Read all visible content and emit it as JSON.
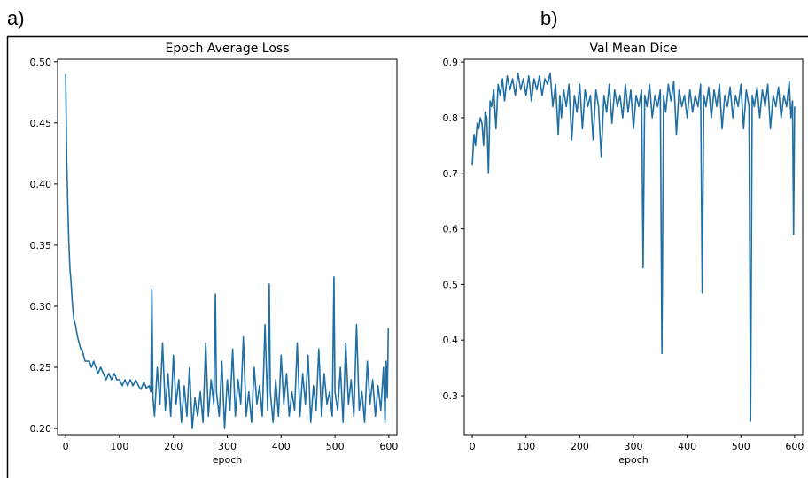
{
  "panels": [
    {
      "label": "a)"
    },
    {
      "label": "b)"
    }
  ],
  "chart_data": [
    {
      "type": "line",
      "title": "Epoch Average Loss",
      "xlabel": "epoch",
      "ylabel": "",
      "xlim": [
        -15,
        615
      ],
      "ylim": [
        0.195,
        0.502
      ],
      "xticks": [
        0,
        100,
        200,
        300,
        400,
        500,
        600
      ],
      "yticks": [
        0.2,
        0.25,
        0.3,
        0.35,
        0.4,
        0.45,
        0.5
      ],
      "ytick_labels": [
        "0.20",
        "0.25",
        "0.30",
        "0.35",
        "0.40",
        "0.45",
        "0.50"
      ],
      "color": "#1f6fa4",
      "series": [
        {
          "x": [
            0,
            2,
            4,
            6,
            8,
            10,
            12,
            15,
            18,
            20,
            22,
            25,
            28,
            30,
            33,
            36,
            40,
            44,
            48,
            52,
            56,
            60,
            65,
            70,
            75,
            80,
            85,
            90,
            95,
            100,
            105,
            110,
            115,
            120,
            125,
            130,
            135,
            140,
            145,
            150,
            155,
            158,
            160,
            162,
            165,
            170,
            175,
            180,
            185,
            190,
            195,
            200,
            205,
            210,
            215,
            220,
            225,
            230,
            235,
            240,
            245,
            250,
            255,
            260,
            265,
            270,
            275,
            278,
            280,
            285,
            290,
            295,
            300,
            305,
            310,
            315,
            320,
            325,
            330,
            335,
            340,
            345,
            350,
            355,
            360,
            365,
            370,
            375,
            378,
            380,
            385,
            390,
            395,
            400,
            405,
            410,
            415,
            420,
            425,
            430,
            435,
            440,
            445,
            450,
            455,
            460,
            465,
            470,
            475,
            480,
            485,
            490,
            495,
            498,
            500,
            505,
            510,
            515,
            520,
            525,
            530,
            535,
            540,
            545,
            550,
            555,
            560,
            565,
            570,
            575,
            580,
            585,
            590,
            593,
            595,
            597,
            599
          ],
          "y": [
            0.49,
            0.42,
            0.38,
            0.35,
            0.33,
            0.32,
            0.305,
            0.29,
            0.285,
            0.28,
            0.275,
            0.27,
            0.265,
            0.265,
            0.26,
            0.255,
            0.255,
            0.255,
            0.25,
            0.255,
            0.25,
            0.245,
            0.25,
            0.245,
            0.24,
            0.245,
            0.24,
            0.245,
            0.24,
            0.24,
            0.235,
            0.24,
            0.235,
            0.24,
            0.235,
            0.24,
            0.235,
            0.232,
            0.238,
            0.233,
            0.235,
            0.23,
            0.314,
            0.225,
            0.21,
            0.25,
            0.22,
            0.27,
            0.215,
            0.245,
            0.21,
            0.26,
            0.22,
            0.24,
            0.205,
            0.235,
            0.21,
            0.25,
            0.2,
            0.225,
            0.21,
            0.23,
            0.205,
            0.27,
            0.21,
            0.24,
            0.22,
            0.31,
            0.23,
            0.21,
            0.255,
            0.2,
            0.24,
            0.215,
            0.265,
            0.21,
            0.24,
            0.22,
            0.275,
            0.21,
            0.23,
            0.205,
            0.25,
            0.22,
            0.235,
            0.21,
            0.285,
            0.215,
            0.318,
            0.23,
            0.205,
            0.24,
            0.21,
            0.26,
            0.22,
            0.245,
            0.21,
            0.23,
            0.215,
            0.27,
            0.21,
            0.245,
            0.22,
            0.26,
            0.205,
            0.235,
            0.215,
            0.265,
            0.21,
            0.245,
            0.22,
            0.23,
            0.21,
            0.324,
            0.23,
            0.215,
            0.25,
            0.205,
            0.27,
            0.22,
            0.24,
            0.21,
            0.285,
            0.215,
            0.23,
            0.205,
            0.255,
            0.22,
            0.24,
            0.21,
            0.235,
            0.215,
            0.25,
            0.205,
            0.255,
            0.225,
            0.282
          ]
        }
      ]
    },
    {
      "type": "line",
      "title": "Val Mean Dice",
      "xlabel": "epoch",
      "ylabel": "",
      "xlim": [
        -15,
        615
      ],
      "ylim": [
        0.23,
        0.905
      ],
      "xticks": [
        0,
        100,
        200,
        300,
        400,
        500,
        600
      ],
      "yticks": [
        0.3,
        0.4,
        0.5,
        0.6,
        0.7,
        0.8,
        0.9
      ],
      "ytick_labels": [
        "0.3",
        "0.4",
        "0.5",
        "0.6",
        "0.7",
        "0.8",
        "0.9"
      ],
      "color": "#1f6fa4",
      "series": [
        {
          "x": [
            0,
            3,
            6,
            9,
            12,
            15,
            18,
            21,
            24,
            27,
            30,
            33,
            36,
            40,
            44,
            48,
            52,
            56,
            60,
            65,
            70,
            75,
            80,
            85,
            90,
            95,
            100,
            105,
            110,
            115,
            120,
            125,
            130,
            135,
            140,
            145,
            150,
            155,
            160,
            163,
            166,
            170,
            175,
            180,
            185,
            190,
            195,
            200,
            205,
            210,
            215,
            220,
            225,
            230,
            235,
            240,
            245,
            250,
            255,
            260,
            265,
            270,
            275,
            280,
            285,
            290,
            295,
            300,
            305,
            310,
            315,
            318,
            321,
            325,
            330,
            335,
            340,
            345,
            350,
            353,
            356,
            360,
            365,
            370,
            375,
            380,
            385,
            390,
            395,
            400,
            405,
            410,
            415,
            420,
            425,
            428,
            431,
            435,
            440,
            445,
            450,
            455,
            460,
            465,
            470,
            475,
            480,
            485,
            490,
            495,
            500,
            505,
            510,
            515,
            518,
            521,
            525,
            530,
            535,
            540,
            545,
            550,
            555,
            560,
            565,
            570,
            575,
            580,
            585,
            590,
            593,
            596,
            598,
            600
          ],
          "y": [
            0.715,
            0.77,
            0.75,
            0.79,
            0.78,
            0.8,
            0.79,
            0.75,
            0.81,
            0.8,
            0.7,
            0.83,
            0.82,
            0.85,
            0.78,
            0.86,
            0.84,
            0.87,
            0.83,
            0.875,
            0.85,
            0.87,
            0.84,
            0.88,
            0.85,
            0.87,
            0.84,
            0.875,
            0.83,
            0.87,
            0.85,
            0.875,
            0.84,
            0.87,
            0.86,
            0.88,
            0.82,
            0.86,
            0.77,
            0.84,
            0.8,
            0.85,
            0.82,
            0.86,
            0.76,
            0.84,
            0.81,
            0.86,
            0.78,
            0.85,
            0.82,
            0.84,
            0.76,
            0.85,
            0.82,
            0.73,
            0.84,
            0.81,
            0.86,
            0.79,
            0.85,
            0.82,
            0.84,
            0.8,
            0.86,
            0.81,
            0.85,
            0.78,
            0.84,
            0.82,
            0.85,
            0.53,
            0.84,
            0.82,
            0.86,
            0.8,
            0.84,
            0.82,
            0.85,
            0.376,
            0.84,
            0.81,
            0.86,
            0.83,
            0.865,
            0.77,
            0.85,
            0.82,
            0.84,
            0.8,
            0.85,
            0.81,
            0.84,
            0.82,
            0.86,
            0.485,
            0.84,
            0.82,
            0.855,
            0.8,
            0.85,
            0.82,
            0.86,
            0.78,
            0.84,
            0.82,
            0.855,
            0.8,
            0.84,
            0.82,
            0.86,
            0.78,
            0.85,
            0.82,
            0.254,
            0.84,
            0.82,
            0.855,
            0.8,
            0.85,
            0.82,
            0.86,
            0.78,
            0.84,
            0.82,
            0.855,
            0.8,
            0.84,
            0.82,
            0.865,
            0.8,
            0.83,
            0.59,
            0.82
          ]
        }
      ]
    }
  ]
}
